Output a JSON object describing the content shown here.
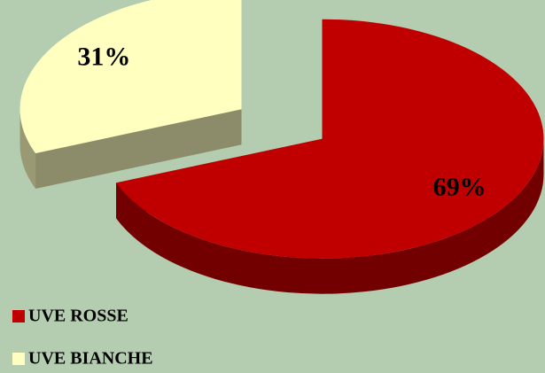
{
  "chart_data": {
    "type": "pie",
    "categories": [
      "UVE ROSSE",
      "UVE BIANCHE"
    ],
    "values": [
      69,
      31
    ],
    "value_labels": [
      "69%",
      "31%"
    ],
    "colors": [
      "#c00000",
      "#ffffc0"
    ],
    "legend": "bottom-left"
  }
}
